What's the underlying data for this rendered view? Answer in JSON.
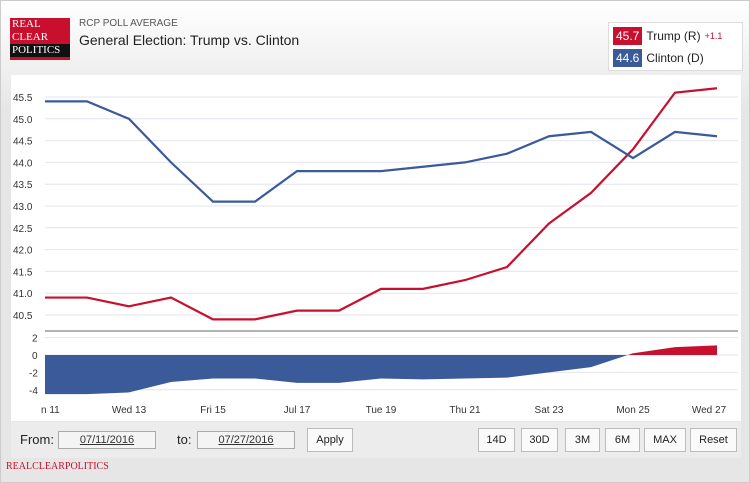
{
  "header": {
    "logo_text": [
      "REAL",
      "CLEAR",
      "POLITICS"
    ],
    "subtitle": "RCP POLL AVERAGE",
    "title": "General Election: Trump vs. Clinton"
  },
  "legend": [
    {
      "value": "45.7",
      "name": "Trump (R)",
      "change": "+1.1",
      "color": "#c8102e"
    },
    {
      "value": "44.6",
      "name": "Clinton (D)",
      "change": "",
      "color": "#3a5a9a"
    }
  ],
  "controls": {
    "from_label": "From:",
    "from_value": "07/11/2016",
    "to_label": "to:",
    "to_value": "07/27/2016",
    "apply": "Apply",
    "ranges": [
      "14D",
      "30D",
      "3M",
      "6M",
      "MAX",
      "Reset"
    ]
  },
  "footer": "REALCLEARPOLITICS",
  "chart_data": {
    "type": "line",
    "x": [
      "Jul 11",
      "Jul 12",
      "Jul 13",
      "Jul 14",
      "Jul 15",
      "Jul 16",
      "Jul 17",
      "Jul 18",
      "Jul 19",
      "Jul 20",
      "Jul 21",
      "Jul 22",
      "Jul 23",
      "Jul 24",
      "Jul 25",
      "Jul 26",
      "Jul 27"
    ],
    "x_tick_labels": [
      "n 11",
      "Wed 13",
      "Fri 15",
      "Jul 17",
      "Tue 19",
      "Thu 21",
      "Sat 23",
      "Mon 25",
      "Wed 27"
    ],
    "series": [
      {
        "name": "Trump (R)",
        "color": "#c8102e",
        "values": [
          40.9,
          40.9,
          40.7,
          40.9,
          40.4,
          40.4,
          40.6,
          40.6,
          41.1,
          41.1,
          41.3,
          41.6,
          42.6,
          43.3,
          44.3,
          45.6,
          45.7
        ]
      },
      {
        "name": "Clinton (D)",
        "color": "#3a5a9a",
        "values": [
          45.4,
          45.4,
          45.0,
          44.0,
          43.1,
          43.1,
          43.8,
          43.8,
          43.8,
          43.9,
          44.0,
          44.2,
          44.6,
          44.7,
          44.1,
          44.7,
          44.6
        ]
      }
    ],
    "ylim": [
      40.3,
      45.9
    ],
    "y_ticks": [
      "45.5",
      "45.0",
      "44.5",
      "44.0",
      "43.5",
      "43.0",
      "42.5",
      "42.0",
      "41.5",
      "41.0",
      "40.5"
    ],
    "spread_ylim": [
      -5,
      3
    ],
    "spread_ticks": [
      "2",
      "0",
      "-2",
      "-4"
    ],
    "grid": true
  }
}
